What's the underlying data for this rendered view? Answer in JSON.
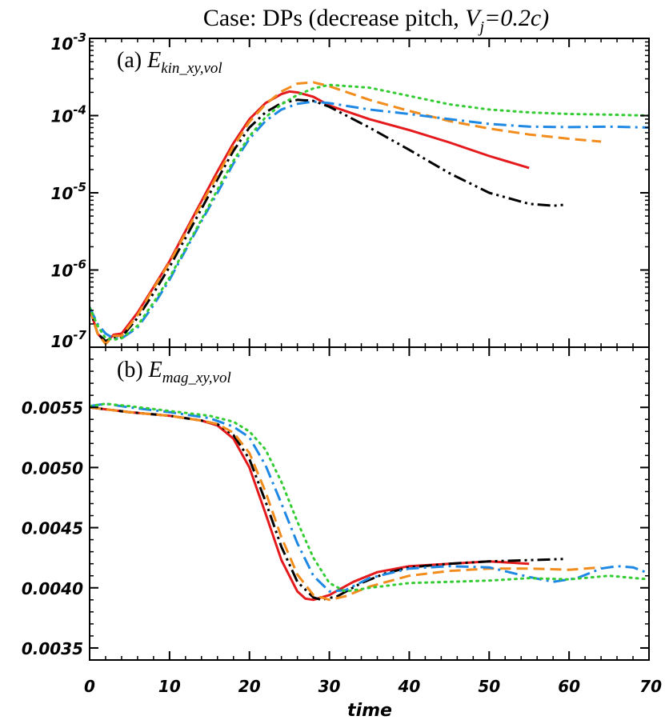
{
  "title": {
    "prefix": "Case: DPs (decrease pitch, ",
    "var": "V",
    "sub": "j",
    "suffix": "=0.2c)"
  },
  "colors": {
    "red": "#e41a1c",
    "black": "#000000",
    "orange": "#f28c1c",
    "blue": "#1e88e5",
    "green": "#33cc33"
  },
  "chart_data": [
    {
      "type": "line",
      "panel_label": {
        "prefix": "(a) ",
        "var": "E",
        "sub": "kin_xy,vol"
      },
      "xlabel": "time",
      "xlim": [
        0,
        70
      ],
      "ylim": [
        1e-07,
        0.001
      ],
      "yscale": "log",
      "x_ticks": [
        0,
        10,
        20,
        30,
        40,
        50,
        60,
        70
      ],
      "y_ticks": [
        {
          "value": 1e-07,
          "base": "10",
          "exp": "-7"
        },
        {
          "value": 1e-06,
          "base": "10",
          "exp": "-6"
        },
        {
          "value": 1e-05,
          "base": "10",
          "exp": "-5"
        },
        {
          "value": 0.0001,
          "base": "10",
          "exp": "-4"
        },
        {
          "value": 0.001,
          "base": "10",
          "exp": "-3"
        }
      ],
      "series": [
        {
          "color": "red",
          "style": "solid",
          "points": [
            [
              0,
              3.2e-07
            ],
            [
              1,
              1.5e-07
            ],
            [
              2,
              1.15e-07
            ],
            [
              3,
              1.45e-07
            ],
            [
              4,
              1.5e-07
            ],
            [
              6,
              2.8e-07
            ],
            [
              8,
              6e-07
            ],
            [
              10,
              1.3e-06
            ],
            [
              12,
              3.2e-06
            ],
            [
              14,
              7.8e-06
            ],
            [
              16,
              1.9e-05
            ],
            [
              18,
              4.4e-05
            ],
            [
              20,
              9e-05
            ],
            [
              22,
              0.000145
            ],
            [
              24,
              0.00019
            ],
            [
              25,
              0.000205
            ],
            [
              26,
              0.0002
            ],
            [
              28,
              0.000175
            ],
            [
              30,
              0.000135
            ],
            [
              35,
              9e-05
            ],
            [
              40,
              6.5e-05
            ],
            [
              45,
              4.5e-05
            ],
            [
              50,
              3e-05
            ],
            [
              55,
              2.1e-05
            ]
          ]
        },
        {
          "color": "black",
          "style": "dashdotdot",
          "points": [
            [
              0,
              3.2e-07
            ],
            [
              1,
              1.5e-07
            ],
            [
              2,
              1.2e-07
            ],
            [
              3,
              1.35e-07
            ],
            [
              4,
              1.35e-07
            ],
            [
              6,
              2.4e-07
            ],
            [
              8,
              5e-07
            ],
            [
              10,
              1.1e-06
            ],
            [
              12,
              2.6e-06
            ],
            [
              14,
              6.2e-06
            ],
            [
              16,
              1.5e-05
            ],
            [
              18,
              3.5e-05
            ],
            [
              20,
              7e-05
            ],
            [
              22,
              0.00011
            ],
            [
              24,
              0.000145
            ],
            [
              26,
              0.00016
            ],
            [
              28,
              0.000155
            ],
            [
              30,
              0.00013
            ],
            [
              35,
              7e-05
            ],
            [
              40,
              3.6e-05
            ],
            [
              45,
              1.8e-05
            ],
            [
              50,
              1e-05
            ],
            [
              55,
              7.2e-06
            ],
            [
              58,
              6.8e-06
            ],
            [
              59.5,
              7e-06
            ]
          ]
        },
        {
          "color": "orange",
          "style": "dashed",
          "points": [
            [
              0,
              3.2e-07
            ],
            [
              1,
              1.5e-07
            ],
            [
              2,
              1.1e-07
            ],
            [
              3,
              1.4e-07
            ],
            [
              4,
              1.4e-07
            ],
            [
              6,
              2.6e-07
            ],
            [
              8,
              5.8e-07
            ],
            [
              10,
              1.25e-06
            ],
            [
              12,
              3e-06
            ],
            [
              14,
              7.2e-06
            ],
            [
              16,
              1.7e-05
            ],
            [
              18,
              4e-05
            ],
            [
              20,
              8.3e-05
            ],
            [
              22,
              0.00014
            ],
            [
              24,
              0.000205
            ],
            [
              26,
              0.00026
            ],
            [
              28,
              0.00027
            ],
            [
              30,
              0.00024
            ],
            [
              35,
              0.00016
            ],
            [
              40,
              0.000115
            ],
            [
              45,
              8.5e-05
            ],
            [
              50,
              6.8e-05
            ],
            [
              55,
              5.7e-05
            ],
            [
              60,
              5e-05
            ],
            [
              64,
              4.6e-05
            ]
          ]
        },
        {
          "color": "blue",
          "style": "dashdot",
          "points": [
            [
              0,
              3.3e-07
            ],
            [
              1,
              2e-07
            ],
            [
              2,
              1.5e-07
            ],
            [
              3,
              1.3e-07
            ],
            [
              4,
              1.3e-07
            ],
            [
              6,
              1.8e-07
            ],
            [
              8,
              3.5e-07
            ],
            [
              10,
              7.5e-07
            ],
            [
              12,
              1.8e-06
            ],
            [
              14,
              4.3e-06
            ],
            [
              16,
              1e-05
            ],
            [
              18,
              2.4e-05
            ],
            [
              20,
              5e-05
            ],
            [
              22,
              8.5e-05
            ],
            [
              24,
              0.00012
            ],
            [
              26,
              0.000142
            ],
            [
              28,
              0.000152
            ],
            [
              30,
              0.000145
            ],
            [
              35,
              0.00012
            ],
            [
              40,
              0.000105
            ],
            [
              45,
              9e-05
            ],
            [
              50,
              7.8e-05
            ],
            [
              55,
              7.2e-05
            ],
            [
              60,
              7.1e-05
            ],
            [
              65,
              7.2e-05
            ],
            [
              70,
              7e-05
            ]
          ]
        },
        {
          "color": "green",
          "style": "dotted",
          "points": [
            [
              0,
              3.3e-07
            ],
            [
              1,
              1.9e-07
            ],
            [
              2,
              1.3e-07
            ],
            [
              3,
              1.25e-07
            ],
            [
              4,
              1.3e-07
            ],
            [
              6,
              1.9e-07
            ],
            [
              8,
              3.8e-07
            ],
            [
              10,
              8e-07
            ],
            [
              12,
              1.9e-06
            ],
            [
              14,
              4.5e-06
            ],
            [
              16,
              1.1e-05
            ],
            [
              18,
              2.6e-05
            ],
            [
              20,
              5.4e-05
            ],
            [
              22,
              9.5e-05
            ],
            [
              24,
              0.00014
            ],
            [
              26,
              0.000185
            ],
            [
              28,
              0.000225
            ],
            [
              30,
              0.00025
            ],
            [
              35,
              0.00023
            ],
            [
              40,
              0.00018
            ],
            [
              45,
              0.00014
            ],
            [
              50,
              0.00012
            ],
            [
              55,
              0.00011
            ],
            [
              60,
              0.000105
            ],
            [
              65,
              0.000103
            ],
            [
              70,
              0.0001
            ]
          ]
        }
      ]
    },
    {
      "type": "line",
      "panel_label": {
        "prefix": "(b) ",
        "var": "E",
        "sub": "mag_xy,vol"
      },
      "xlabel": "time",
      "xlim": [
        0,
        70
      ],
      "ylim": [
        0.0034,
        0.006
      ],
      "yscale": "linear",
      "x_ticks": [
        0,
        10,
        20,
        30,
        40,
        50,
        60,
        70
      ],
      "y_ticks": [
        {
          "value": 0.0035,
          "label": "0.0035"
        },
        {
          "value": 0.004,
          "label": "0.0040"
        },
        {
          "value": 0.0045,
          "label": "0.0045"
        },
        {
          "value": 0.005,
          "label": "0.0050"
        },
        {
          "value": 0.0055,
          "label": "0.0055"
        }
      ],
      "series": [
        {
          "color": "red",
          "style": "solid",
          "points": [
            [
              0,
              0.0055
            ],
            [
              5,
              0.00546
            ],
            [
              10,
              0.00543
            ],
            [
              14,
              0.00539
            ],
            [
              16,
              0.00535
            ],
            [
              18,
              0.00524
            ],
            [
              20,
              0.005
            ],
            [
              22,
              0.00462
            ],
            [
              24,
              0.00423
            ],
            [
              26,
              0.00397
            ],
            [
              27,
              0.00391
            ],
            [
              28,
              0.0039
            ],
            [
              30,
              0.00394
            ],
            [
              33,
              0.00405
            ],
            [
              36,
              0.00413
            ],
            [
              40,
              0.00418
            ],
            [
              45,
              0.0042
            ],
            [
              50,
              0.00422
            ],
            [
              55,
              0.0042
            ]
          ]
        },
        {
          "color": "black",
          "style": "dashdotdot",
          "points": [
            [
              0,
              0.0055
            ],
            [
              5,
              0.00546
            ],
            [
              10,
              0.00543
            ],
            [
              14,
              0.00539
            ],
            [
              16,
              0.00536
            ],
            [
              18,
              0.00527
            ],
            [
              20,
              0.00507
            ],
            [
              22,
              0.00472
            ],
            [
              24,
              0.00434
            ],
            [
              26,
              0.00405
            ],
            [
              28,
              0.00392
            ],
            [
              29,
              0.0039
            ],
            [
              31,
              0.00393
            ],
            [
              34,
              0.00404
            ],
            [
              37,
              0.00412
            ],
            [
              40,
              0.00417
            ],
            [
              45,
              0.0042
            ],
            [
              50,
              0.00422
            ],
            [
              55,
              0.00423
            ],
            [
              59.5,
              0.00424
            ]
          ]
        },
        {
          "color": "orange",
          "style": "dashed",
          "points": [
            [
              0,
              0.0055
            ],
            [
              5,
              0.00546
            ],
            [
              10,
              0.00543
            ],
            [
              14,
              0.00539
            ],
            [
              16,
              0.00536
            ],
            [
              18,
              0.00529
            ],
            [
              20,
              0.00512
            ],
            [
              22,
              0.0048
            ],
            [
              24,
              0.00442
            ],
            [
              26,
              0.00411
            ],
            [
              28,
              0.00394
            ],
            [
              30,
              0.0039
            ],
            [
              32,
              0.00393
            ],
            [
              35,
              0.00401
            ],
            [
              40,
              0.0041
            ],
            [
              45,
              0.00414
            ],
            [
              50,
              0.00416
            ],
            [
              55,
              0.00416
            ],
            [
              60,
              0.00415
            ],
            [
              64,
              0.00417
            ]
          ]
        },
        {
          "color": "blue",
          "style": "dashdot",
          "points": [
            [
              0,
              0.00551
            ],
            [
              2,
              0.00553
            ],
            [
              5,
              0.0055
            ],
            [
              10,
              0.00546
            ],
            [
              15,
              0.00541
            ],
            [
              18,
              0.00534
            ],
            [
              20,
              0.00525
            ],
            [
              22,
              0.00502
            ],
            [
              24,
              0.0047
            ],
            [
              26,
              0.00437
            ],
            [
              28,
              0.0041
            ],
            [
              30,
              0.00397
            ],
            [
              32,
              0.00398
            ],
            [
              35,
              0.00408
            ],
            [
              40,
              0.00416
            ],
            [
              45,
              0.00418
            ],
            [
              50,
              0.00417
            ],
            [
              55,
              0.00409
            ],
            [
              58,
              0.00405
            ],
            [
              61,
              0.00408
            ],
            [
              64,
              0.00416
            ],
            [
              66,
              0.00418
            ],
            [
              68,
              0.00417
            ],
            [
              70,
              0.00412
            ]
          ]
        },
        {
          "color": "green",
          "style": "dotted",
          "points": [
            [
              0,
              0.00551
            ],
            [
              2,
              0.00553
            ],
            [
              5,
              0.00551
            ],
            [
              10,
              0.00547
            ],
            [
              15,
              0.00543
            ],
            [
              18,
              0.00538
            ],
            [
              20,
              0.0053
            ],
            [
              22,
              0.00515
            ],
            [
              24,
              0.00488
            ],
            [
              26,
              0.00455
            ],
            [
              28,
              0.00425
            ],
            [
              30,
              0.00404
            ],
            [
              32,
              0.00397
            ],
            [
              35,
              0.004
            ],
            [
              40,
              0.00404
            ],
            [
              45,
              0.00405
            ],
            [
              50,
              0.00406
            ],
            [
              55,
              0.00408
            ],
            [
              60,
              0.00407
            ],
            [
              65,
              0.0041
            ],
            [
              70,
              0.00407
            ]
          ]
        }
      ]
    }
  ]
}
